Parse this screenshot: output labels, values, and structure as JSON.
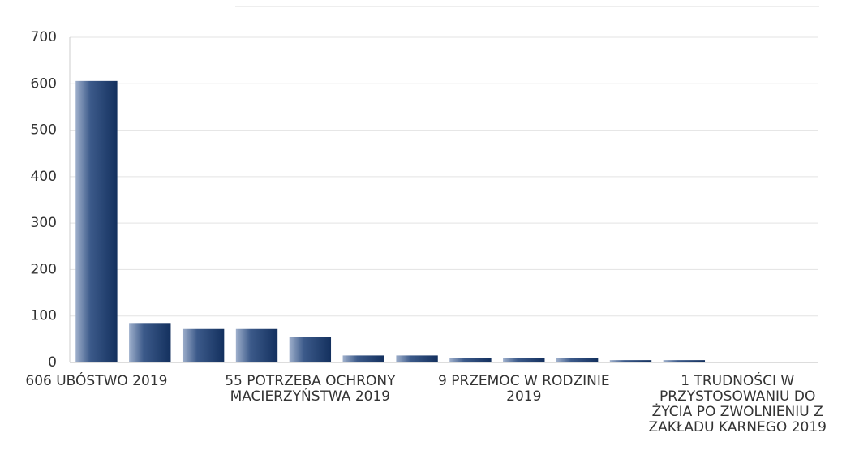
{
  "chart_data": {
    "type": "bar",
    "categories": [
      "606 UBÓSTWO 2019",
      null,
      null,
      null,
      "55 POTRZEBA OCHRONY MACIERZYŃSTWA 2019",
      null,
      null,
      null,
      "9 PRZEMOC W RODZINIE 2019",
      null,
      null,
      null,
      "1 TRUDNOŚCI W PRZYSTOSOWANIU DO ŻYCIA PO ZWOLNIENIU Z ZAKŁADU KARNEGO 2019",
      null
    ],
    "values": [
      606,
      85,
      72,
      72,
      55,
      15,
      15,
      10,
      9,
      9,
      5,
      5,
      1,
      1
    ],
    "color": "#1b3b6e",
    "ylim": [
      0,
      700
    ],
    "yticks": [
      0,
      100,
      200,
      300,
      400,
      500,
      600,
      700
    ],
    "grid": true
  }
}
